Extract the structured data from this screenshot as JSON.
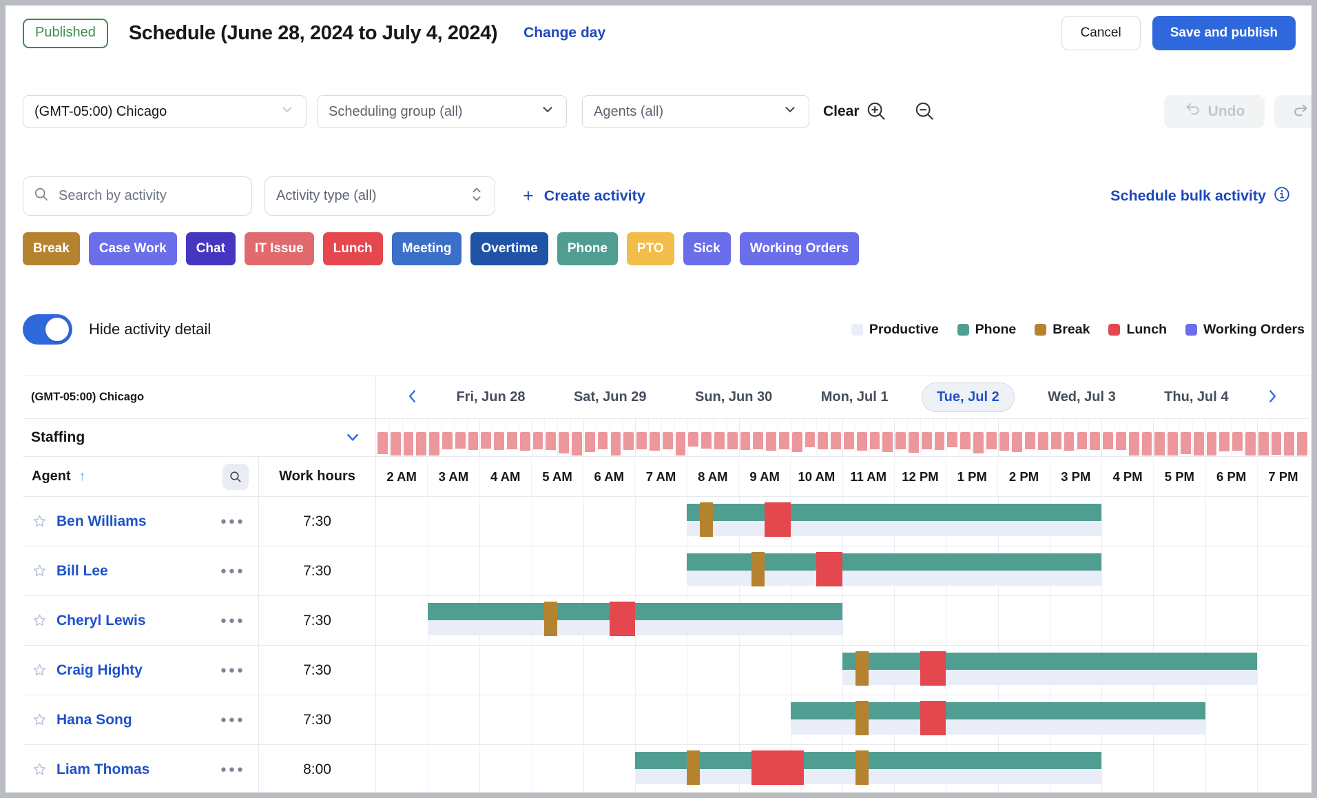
{
  "header": {
    "status_badge": "Published",
    "title": "Schedule (June 28, 2024 to July 4, 2024)",
    "change_day_label": "Change day",
    "cancel_label": "Cancel",
    "save_label": "Save and publish"
  },
  "filters": {
    "timezone": "(GMT-05:00) Chicago",
    "scheduling_group": "Scheduling group (all)",
    "agents": "Agents (all)",
    "clear_label": "Clear",
    "undo_label": "Undo"
  },
  "activity_toolbar": {
    "search_placeholder": "Search by activity",
    "activity_type": "Activity type (all)",
    "create_activity_label": "Create activity",
    "schedule_bulk_label": "Schedule bulk activity"
  },
  "activity_tags": [
    {
      "label": "Break",
      "color": "#b5832f"
    },
    {
      "label": "Case Work",
      "color": "#6b6eea"
    },
    {
      "label": "Chat",
      "color": "#4636bf"
    },
    {
      "label": "IT Issue",
      "color": "#e06a6e"
    },
    {
      "label": "Lunch",
      "color": "#e4474e"
    },
    {
      "label": "Meeting",
      "color": "#3a70c8"
    },
    {
      "label": "Overtime",
      "color": "#1e53a6"
    },
    {
      "label": "Phone",
      "color": "#4f9e91"
    },
    {
      "label": "PTO",
      "color": "#f3bd4a"
    },
    {
      "label": "Sick",
      "color": "#6b6eea"
    },
    {
      "label": "Working Orders",
      "color": "#6b6eea"
    }
  ],
  "detail_toggle": {
    "label": "Hide activity detail",
    "state": "on"
  },
  "legend": [
    {
      "label": "Productive",
      "color": "#e9edf8"
    },
    {
      "label": "Phone",
      "color": "#4f9e91"
    },
    {
      "label": "Break",
      "color": "#b5832f"
    },
    {
      "label": "Lunch",
      "color": "#e4474e"
    },
    {
      "label": "Working Orders",
      "color": "#6b6eea"
    }
  ],
  "schedule": {
    "timezone_label": "(GMT-05:00) Chicago",
    "days": [
      "Fri, Jun 28",
      "Sat, Jun 29",
      "Sun, Jun 30",
      "Mon, Jul 1",
      "Tue, Jul 2",
      "Wed, Jul 3",
      "Thu, Jul 4"
    ],
    "selected_day": "Tue, Jul 2",
    "staffing_label": "Staffing",
    "columns": {
      "agent": "Agent",
      "work_hours": "Work hours"
    },
    "time_labels": [
      "2 AM",
      "3 AM",
      "4 AM",
      "5 AM",
      "6 AM",
      "7 AM",
      "8 AM",
      "9 AM",
      "10 AM",
      "11 AM",
      "12 PM",
      "1 PM",
      "2 PM",
      "3 PM",
      "4 PM",
      "5 PM",
      "6 PM",
      "7 PM"
    ],
    "timeline_start_hour": 2,
    "timeline_end_hour": 20,
    "staffing_histogram": [
      0.95,
      1,
      1,
      1,
      1,
      0.74,
      0.72,
      0.76,
      0.72,
      0.76,
      0.73,
      0.78,
      0.73,
      0.76,
      0.92,
      1,
      0.86,
      0.73,
      1,
      0.76,
      0.73,
      0.79,
      0.73,
      1,
      0.62,
      0.7,
      0.73,
      0.73,
      0.76,
      0.73,
      0.79,
      0.73,
      0.86,
      0.66,
      0.73,
      0.73,
      0.73,
      0.79,
      0.73,
      0.86,
      0.73,
      0.89,
      0.73,
      0.76,
      0.66,
      0.73,
      0.91,
      0.73,
      0.79,
      0.86,
      0.73,
      0.76,
      0.73,
      0.79,
      0.73,
      0.76,
      0.73,
      0.76,
      1,
      1,
      1,
      1,
      0.95,
      1,
      1,
      0.83,
      0.79,
      1,
      1,
      0.96,
      1,
      1
    ],
    "agents": [
      {
        "name": "Ben Williams",
        "work_hours": "7:30",
        "shift": {
          "start": 8,
          "end": 16
        },
        "breaks": [
          {
            "start": 8.25,
            "end": 8.5
          }
        ],
        "lunches": [
          {
            "start": 9.5,
            "end": 10
          }
        ]
      },
      {
        "name": "Bill Lee",
        "work_hours": "7:30",
        "shift": {
          "start": 8,
          "end": 16
        },
        "breaks": [
          {
            "start": 9.25,
            "end": 9.5
          }
        ],
        "lunches": [
          {
            "start": 10.5,
            "end": 11
          }
        ]
      },
      {
        "name": "Cheryl Lewis",
        "work_hours": "7:30",
        "shift": {
          "start": 3,
          "end": 11
        },
        "breaks": [
          {
            "start": 5.25,
            "end": 5.5
          }
        ],
        "lunches": [
          {
            "start": 6.5,
            "end": 7
          }
        ]
      },
      {
        "name": "Craig Highty",
        "work_hours": "7:30",
        "shift": {
          "start": 11,
          "end": 19
        },
        "breaks": [
          {
            "start": 11.25,
            "end": 11.5
          }
        ],
        "lunches": [
          {
            "start": 12.5,
            "end": 13
          }
        ]
      },
      {
        "name": "Hana Song",
        "work_hours": "7:30",
        "shift": {
          "start": 10,
          "end": 18
        },
        "breaks": [
          {
            "start": 11.25,
            "end": 11.5
          }
        ],
        "lunches": [
          {
            "start": 12.5,
            "end": 13
          }
        ]
      },
      {
        "name": "Liam Thomas",
        "work_hours": "8:00",
        "shift": {
          "start": 7,
          "end": 16
        },
        "breaks": [
          {
            "start": 8,
            "end": 8.25
          },
          {
            "start": 11.25,
            "end": 11.5
          }
        ],
        "lunches": [
          {
            "start": 9.25,
            "end": 10.25
          }
        ]
      }
    ]
  },
  "colors": {
    "primary_link": "#1d49be",
    "primary_button": "#2f68dc",
    "published_green": "#3d8a4c",
    "staffing_bar": "#ec979c",
    "phone_bar": "#4f9e91",
    "productive_bar": "#e9edf8",
    "break_tick": "#b5832f",
    "lunch_tick": "#e4474e"
  },
  "icons": [
    "search-icon",
    "chevron-down-icon",
    "chevron-up-down-icon",
    "plus-icon",
    "info-icon",
    "zoom-in-icon",
    "zoom-out-icon",
    "undo-icon",
    "redo-icon",
    "chevron-left-icon",
    "chevron-right-icon",
    "sort-up-icon",
    "star-icon",
    "ellipsis-icon",
    "toggle-switch"
  ]
}
